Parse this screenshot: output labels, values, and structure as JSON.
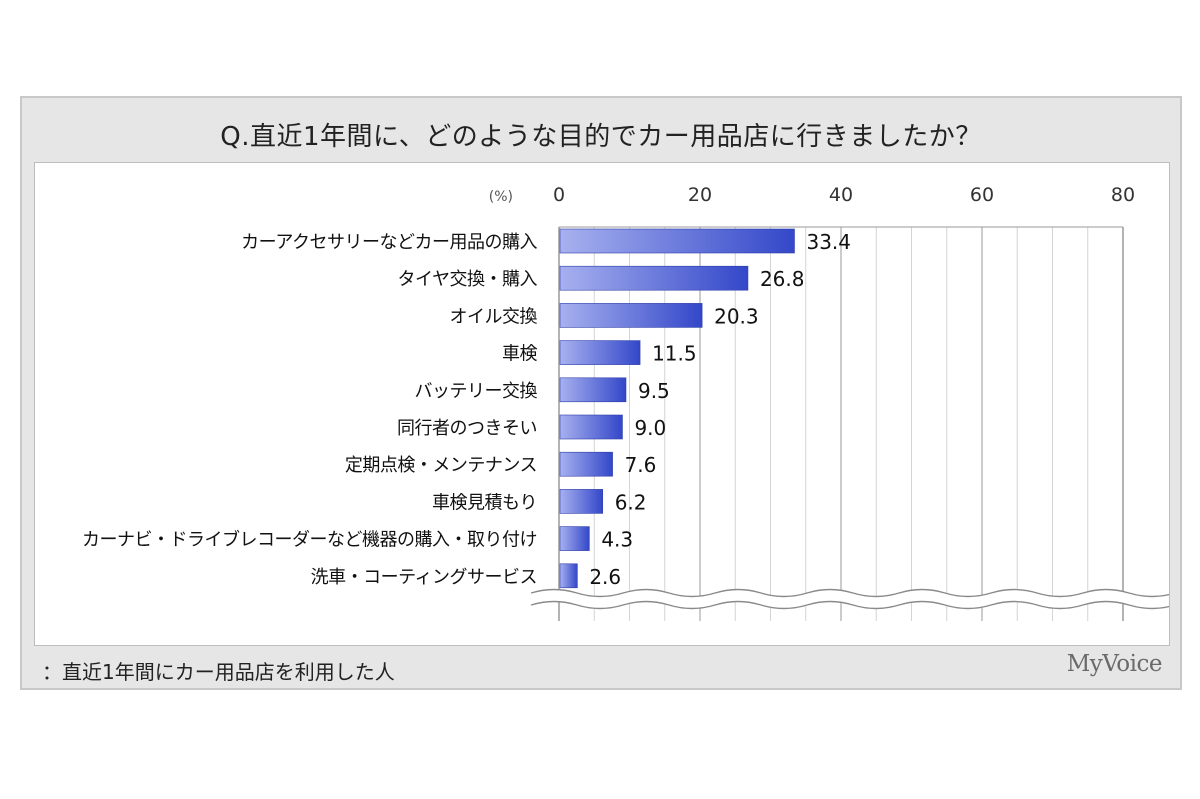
{
  "title": "Q.直近1年間に、どのような目的でカー用品店に行きましたか？",
  "footnote": "：直近1年間にカー用品店を利用した人",
  "logo": "MyVoice",
  "colors": {
    "bar_dark": "#3347c9",
    "bar_light": "#a7b1ef",
    "frame": "#e6e6e6"
  },
  "chart_data": {
    "type": "bar",
    "orientation": "horizontal",
    "unit_label": "(%)",
    "xlim": [
      0,
      80
    ],
    "ticks": [
      0,
      20,
      40,
      60,
      80
    ],
    "grid": true,
    "axis_break": true,
    "categories": [
      "カーアクセサリーなどカー用品の購入",
      "タイヤ交換・購入",
      "オイル交換",
      "車検",
      "バッテリー交換",
      "同行者のつきそい",
      "定期点検・メンテナンス",
      "車検見積もり",
      "カーナビ・ドライブレコーダーなど機器の購入・取り付け",
      "洗車・コーティングサービス"
    ],
    "values": [
      33.4,
      26.8,
      20.3,
      11.5,
      9.5,
      9.0,
      7.6,
      6.2,
      4.3,
      2.6
    ],
    "value_labels": [
      "33.4",
      "26.8",
      "20.3",
      "11.5",
      "9.5",
      "9.0",
      "7.6",
      "6.2",
      "4.3",
      "2.6"
    ]
  }
}
